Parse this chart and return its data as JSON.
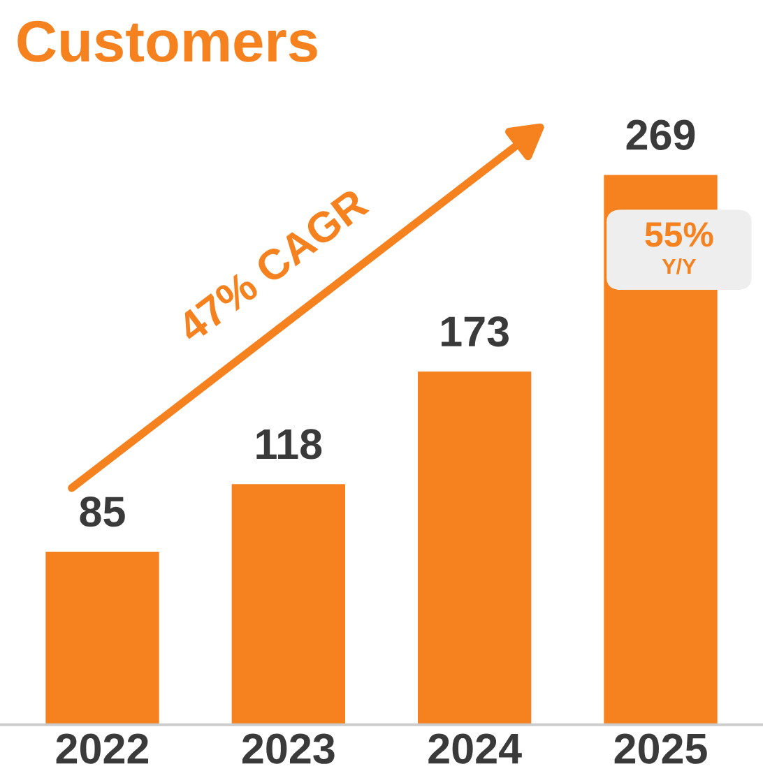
{
  "chart_data": {
    "type": "bar",
    "title": "Customers",
    "categories": [
      "2022",
      "2023",
      "2024",
      "2025"
    ],
    "values": [
      85,
      118,
      173,
      269
    ],
    "color": "#f5821f",
    "data_labels": true,
    "annotations": [
      "47% CAGR",
      "55%",
      "Y/Y"
    ]
  }
}
